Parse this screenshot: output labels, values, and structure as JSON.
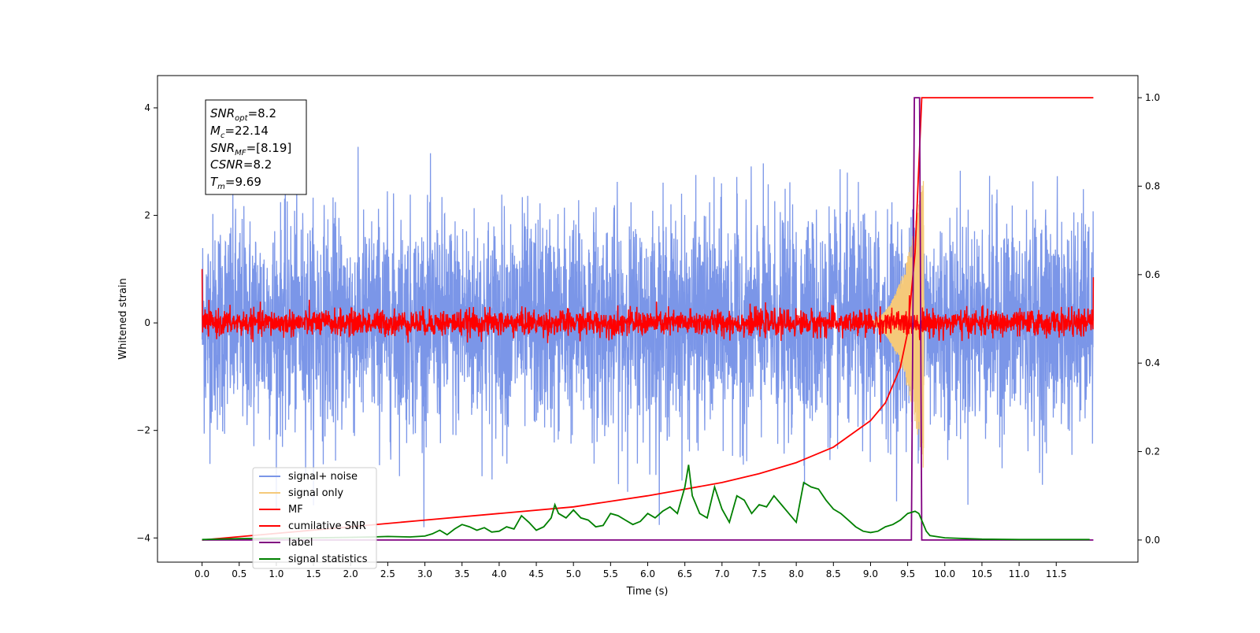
{
  "chart_data": {
    "type": "line",
    "title": "",
    "xlabel": "Time (s)",
    "ylabel": "Whitened strain",
    "y2label": "",
    "xlim": [
      -0.6,
      12.6
    ],
    "ylim": [
      -4.45,
      4.6
    ],
    "y2lim": [
      -0.05,
      1.05
    ],
    "x_ticks": [
      "0.0",
      "0.5",
      "1.0",
      "1.5",
      "2.0",
      "2.5",
      "3.0",
      "3.5",
      "4.0",
      "4.5",
      "5.0",
      "5.5",
      "6.0",
      "6.5",
      "7.0",
      "7.5",
      "8.0",
      "8.5",
      "9.0",
      "9.5",
      "10.0",
      "10.5",
      "11.0",
      "11.5"
    ],
    "y_ticks": [
      "4",
      "2",
      "0",
      "−2",
      "−4"
    ],
    "y2_ticks": [
      "1.0",
      "0.8",
      "0.6",
      "0.4",
      "0.2",
      "0.0"
    ],
    "grid": false,
    "legend_position": "lower-left",
    "annotation_box": {
      "lines": [
        {
          "base": "SNR",
          "sub": "opt",
          "value": "=8.2"
        },
        {
          "base": "M",
          "sub": "c",
          "value": "=22.14"
        },
        {
          "base": "SNR",
          "sub": "MF",
          "value": "=[8.19]"
        },
        {
          "base": "CSNR",
          "sub": "",
          "value": "=8.2"
        },
        {
          "base": "T",
          "sub": "m",
          "value": "=9.69"
        }
      ]
    },
    "series": [
      {
        "name": "signal+ noise",
        "color": "#7b96e8",
        "axis": "left",
        "style": "noise",
        "t_range": [
          0.0,
          12.0
        ],
        "amplitude_std": 1.0,
        "y_max": 4.15,
        "y_min": -3.8
      },
      {
        "name": "signal only",
        "color": "#f5c97a",
        "axis": "left",
        "style": "chirp",
        "t_range": [
          8.8,
          9.72
        ],
        "peak_amplitude": 2.8
      },
      {
        "name": "MF",
        "color": "#ff0000",
        "axis": "left",
        "style": "noise",
        "t_range": [
          0.0,
          12.0
        ],
        "amplitude_std": 0.12,
        "start_value": 1.0,
        "end_value": 0.85
      },
      {
        "name": "cumilative SNR",
        "color": "#ff0000",
        "axis": "right",
        "x": [
          0.0,
          1.0,
          2.0,
          3.0,
          4.0,
          5.0,
          6.0,
          7.0,
          7.5,
          8.0,
          8.5,
          9.0,
          9.2,
          9.4,
          9.5,
          9.6,
          9.69,
          9.72,
          12.0
        ],
        "y": [
          0.0,
          0.015,
          0.03,
          0.045,
          0.06,
          0.075,
          0.1,
          0.13,
          0.15,
          0.175,
          0.21,
          0.27,
          0.31,
          0.39,
          0.47,
          0.65,
          1.0,
          1.0,
          1.0
        ]
      },
      {
        "name": "label",
        "color": "#800080",
        "axis": "right",
        "x": [
          0.0,
          9.55,
          9.59,
          9.66,
          9.69,
          12.0
        ],
        "y": [
          0.0,
          0.0,
          1.0,
          1.0,
          0.0,
          0.0
        ]
      },
      {
        "name": "signal statistics",
        "color": "#008000",
        "axis": "right",
        "x": [
          0.0,
          0.5,
          1.0,
          1.5,
          2.0,
          2.3,
          2.5,
          2.8,
          3.0,
          3.1,
          3.2,
          3.3,
          3.4,
          3.5,
          3.6,
          3.7,
          3.8,
          3.9,
          4.0,
          4.1,
          4.2,
          4.3,
          4.4,
          4.5,
          4.6,
          4.7,
          4.75,
          4.8,
          4.9,
          5.0,
          5.1,
          5.2,
          5.3,
          5.4,
          5.5,
          5.6,
          5.7,
          5.8,
          5.9,
          6.0,
          6.1,
          6.2,
          6.3,
          6.4,
          6.5,
          6.55,
          6.6,
          6.7,
          6.8,
          6.9,
          7.0,
          7.1,
          7.2,
          7.3,
          7.4,
          7.5,
          7.6,
          7.7,
          7.8,
          7.9,
          8.0,
          8.1,
          8.2,
          8.3,
          8.4,
          8.5,
          8.6,
          8.7,
          8.8,
          8.9,
          9.0,
          9.1,
          9.2,
          9.3,
          9.4,
          9.5,
          9.6,
          9.65,
          9.7,
          9.75,
          9.8,
          10.0,
          10.5,
          11.0,
          11.5,
          11.95
        ],
        "y": [
          0.001,
          0.003,
          0.004,
          0.005,
          0.006,
          0.007,
          0.008,
          0.007,
          0.009,
          0.014,
          0.022,
          0.012,
          0.025,
          0.035,
          0.03,
          0.022,
          0.028,
          0.018,
          0.02,
          0.03,
          0.025,
          0.055,
          0.04,
          0.022,
          0.03,
          0.05,
          0.08,
          0.06,
          0.05,
          0.068,
          0.05,
          0.045,
          0.03,
          0.033,
          0.06,
          0.055,
          0.045,
          0.035,
          0.042,
          0.06,
          0.05,
          0.065,
          0.075,
          0.06,
          0.12,
          0.17,
          0.1,
          0.06,
          0.05,
          0.12,
          0.07,
          0.04,
          0.1,
          0.09,
          0.06,
          0.08,
          0.075,
          0.1,
          0.08,
          0.06,
          0.04,
          0.13,
          0.12,
          0.115,
          0.09,
          0.07,
          0.06,
          0.045,
          0.03,
          0.02,
          0.017,
          0.02,
          0.03,
          0.035,
          0.045,
          0.06,
          0.065,
          0.06,
          0.04,
          0.02,
          0.01,
          0.005,
          0.002,
          0.001,
          0.001,
          0.001
        ]
      }
    ]
  }
}
